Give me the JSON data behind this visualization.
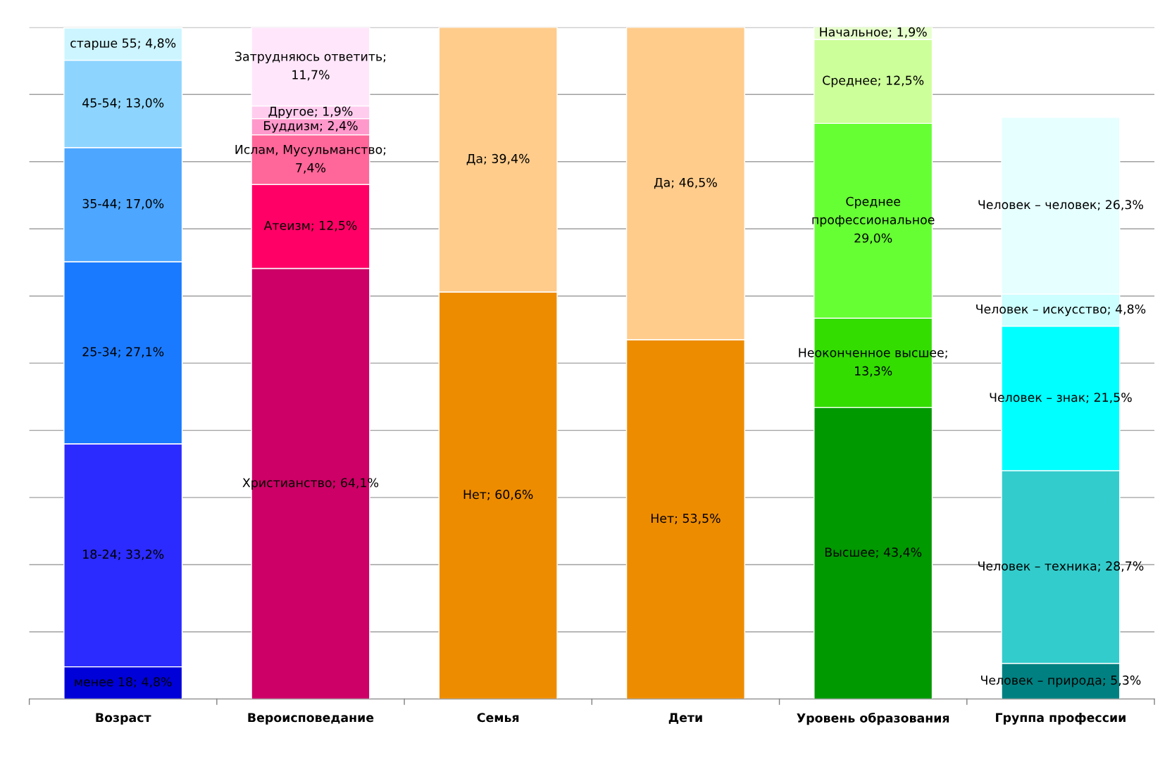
{
  "chart_data": {
    "type": "bar",
    "stacked": true,
    "categories": [
      "Возраст",
      "Вероисповедание",
      "Семья",
      "Дети",
      "Уровень образования",
      "Группа профессии"
    ],
    "series": [
      {
        "values": [
          4.8,
          64.1,
          60.6,
          53.5,
          43.4,
          5.3
        ],
        "colors": [
          "#0000d8",
          "#cc0066",
          "#ee8c00",
          "#ee8c00",
          "#009900",
          "#008080"
        ],
        "value_labels": [
          "менее 18; 4,8%",
          "Христианство; 64,1%",
          "Нет; 60,6%",
          "Нет; 53,5%",
          "Высшее; 43,4%",
          "Человек – природа; 5,3%"
        ]
      },
      {
        "values": [
          33.2,
          12.5,
          39.4,
          46.5,
          13.3,
          28.7
        ],
        "colors": [
          "#2b2bff",
          "#ff0066",
          "#ffcc8c",
          "#ffcc8c",
          "#33dd00",
          "#33cccc"
        ],
        "value_labels": [
          "18-24; 33,2%",
          "Атеизм; 12,5%",
          "Да; 39,4%",
          "Да; 46,5%",
          "Неоконченное высшее;\n13,3%",
          "Человек – техника; 28,7%"
        ]
      },
      {
        "values": [
          27.1,
          7.4,
          null,
          null,
          29.0,
          21.5
        ],
        "colors": [
          "#1a7aff",
          "#ff6699",
          null,
          null,
          "#66ff33",
          "#00ffff"
        ],
        "value_labels": [
          "25-34; 27,1%",
          "Ислам, Мусульманство;\n7,4%",
          null,
          null,
          "Среднее\nпрофессиональное\n29,0%",
          "Человек – знак; 21,5%"
        ]
      },
      {
        "values": [
          17.0,
          2.4,
          null,
          null,
          12.5,
          4.8
        ],
        "colors": [
          "#4da6ff",
          "#ff99cc",
          null,
          null,
          "#ccff99",
          "#ccffff"
        ],
        "value_labels": [
          "35-44; 17,0%",
          "Буддизм; 2,4%",
          null,
          null,
          "Среднее; 12,5%",
          "Человек – искусство; 4,8%"
        ]
      },
      {
        "values": [
          13.0,
          1.9,
          null,
          null,
          1.9,
          26.3
        ],
        "colors": [
          "#8dd5ff",
          "#ffccee",
          null,
          null,
          "#e6ffcc",
          "#e6ffff"
        ],
        "value_labels": [
          "45-54; 13,0%",
          "Другое; 1,9%",
          null,
          null,
          "Начальное; 1,9%",
          "Человек – человек; 26,3%"
        ]
      },
      {
        "values": [
          4.8,
          11.7,
          null,
          null,
          null,
          null
        ],
        "colors": [
          "#ccf5ff",
          "#ffe6fa",
          null,
          null,
          null,
          null
        ],
        "value_labels": [
          "старше 55; 4,8%",
          "Затрудняюсь ответить;\n11,7%",
          null,
          null,
          null,
          null
        ]
      }
    ],
    "ylim": [
      0,
      100
    ],
    "yticks": [
      {
        "value": 0,
        "label": null
      },
      {
        "value": 10,
        "label": null
      },
      {
        "value": 20,
        "label": null
      },
      {
        "value": 30,
        "label": null
      },
      {
        "value": 40,
        "label": null
      },
      {
        "value": 50,
        "label": null
      },
      {
        "value": 60,
        "label": null
      },
      {
        "value": 70,
        "label": null
      },
      {
        "value": 80,
        "label": null
      },
      {
        "value": 90,
        "label": null
      },
      {
        "value": 100,
        "label": null
      }
    ],
    "grid": "y",
    "tick_labels": "x"
  }
}
